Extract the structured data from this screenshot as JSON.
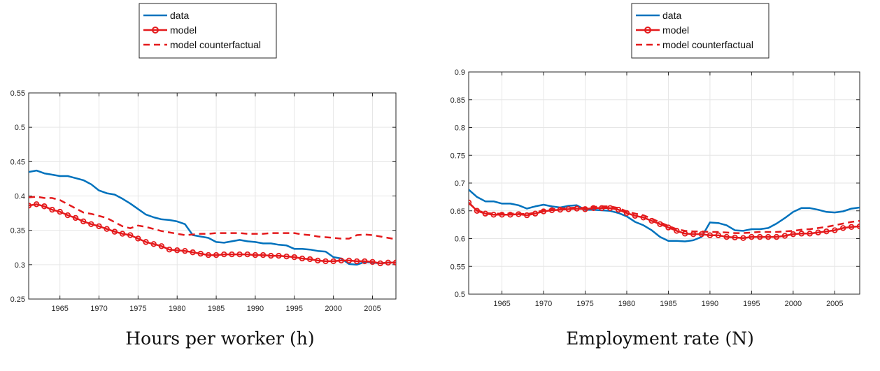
{
  "chart_data": [
    {
      "type": "line",
      "title": "",
      "caption": "Hours per worker (h)",
      "xlabel": "",
      "ylabel": "",
      "xlim": [
        1961,
        2008
      ],
      "ylim": [
        0.25,
        0.55
      ],
      "xticks": [
        "1965",
        "1970",
        "1975",
        "1980",
        "1985",
        "1990",
        "1995",
        "2000",
        "2005"
      ],
      "yticks": [
        "0.25",
        "0.3",
        "0.35",
        "0.4",
        "0.45",
        "0.5",
        "0.55"
      ],
      "grid": true,
      "legend": "top-center",
      "series": [
        {
          "name": "data",
          "color": "#0072BD",
          "style": "solid",
          "x": [
            1961,
            1962,
            1963,
            1964,
            1965,
            1966,
            1967,
            1968,
            1969,
            1970,
            1971,
            1972,
            1973,
            1974,
            1975,
            1976,
            1977,
            1978,
            1979,
            1980,
            1981,
            1982,
            1983,
            1984,
            1985,
            1986,
            1987,
            1988,
            1989,
            1990,
            1991,
            1992,
            1993,
            1994,
            1995,
            1996,
            1997,
            1998,
            1999,
            2000,
            2001,
            2002,
            2003,
            2004,
            2005,
            2006,
            2007,
            2008
          ],
          "y": [
            0.435,
            0.437,
            0.433,
            0.431,
            0.429,
            0.429,
            0.426,
            0.423,
            0.417,
            0.408,
            0.404,
            0.402,
            0.396,
            0.389,
            0.381,
            0.373,
            0.369,
            0.366,
            0.365,
            0.363,
            0.359,
            0.343,
            0.341,
            0.339,
            0.333,
            0.332,
            0.334,
            0.336,
            0.334,
            0.333,
            0.331,
            0.331,
            0.329,
            0.328,
            0.323,
            0.323,
            0.322,
            0.32,
            0.319,
            0.311,
            0.309,
            0.301,
            0.3,
            0.304,
            0.303,
            0.302,
            0.303,
            0.303
          ]
        },
        {
          "name": "model",
          "color": "#E41A1C",
          "style": "solid-circle",
          "x": [
            1961,
            1962,
            1963,
            1964,
            1965,
            1966,
            1967,
            1968,
            1969,
            1970,
            1971,
            1972,
            1973,
            1974,
            1975,
            1976,
            1977,
            1978,
            1979,
            1980,
            1981,
            1982,
            1983,
            1984,
            1985,
            1986,
            1987,
            1988,
            1989,
            1990,
            1991,
            1992,
            1993,
            1994,
            1995,
            1996,
            1997,
            1998,
            1999,
            2000,
            2001,
            2002,
            2003,
            2004,
            2005,
            2006,
            2007,
            2008
          ],
          "y": [
            0.386,
            0.388,
            0.385,
            0.38,
            0.377,
            0.372,
            0.368,
            0.363,
            0.359,
            0.356,
            0.352,
            0.348,
            0.345,
            0.343,
            0.338,
            0.333,
            0.33,
            0.327,
            0.322,
            0.321,
            0.32,
            0.318,
            0.316,
            0.314,
            0.314,
            0.315,
            0.315,
            0.315,
            0.315,
            0.314,
            0.314,
            0.313,
            0.313,
            0.312,
            0.311,
            0.309,
            0.308,
            0.306,
            0.305,
            0.305,
            0.306,
            0.306,
            0.305,
            0.305,
            0.304,
            0.302,
            0.303,
            0.303
          ]
        },
        {
          "name": "model counterfactual",
          "color": "#E41A1C",
          "style": "dashed",
          "x": [
            1961,
            1962,
            1963,
            1964,
            1965,
            1966,
            1967,
            1968,
            1969,
            1970,
            1971,
            1972,
            1973,
            1974,
            1975,
            1976,
            1977,
            1978,
            1979,
            1980,
            1981,
            1982,
            1983,
            1984,
            1985,
            1986,
            1987,
            1988,
            1989,
            1990,
            1991,
            1992,
            1993,
            1994,
            1995,
            1996,
            1997,
            1998,
            1999,
            2000,
            2001,
            2002,
            2003,
            2004,
            2005,
            2006,
            2007,
            2008
          ],
          "y": [
            0.398,
            0.399,
            0.397,
            0.397,
            0.394,
            0.388,
            0.382,
            0.376,
            0.374,
            0.371,
            0.368,
            0.362,
            0.356,
            0.353,
            0.357,
            0.355,
            0.352,
            0.349,
            0.347,
            0.345,
            0.343,
            0.344,
            0.345,
            0.345,
            0.346,
            0.346,
            0.346,
            0.346,
            0.345,
            0.345,
            0.345,
            0.346,
            0.346,
            0.346,
            0.346,
            0.344,
            0.343,
            0.341,
            0.34,
            0.339,
            0.338,
            0.338,
            0.343,
            0.344,
            0.343,
            0.341,
            0.339,
            0.337
          ]
        }
      ]
    },
    {
      "type": "line",
      "title": "",
      "caption": "Employment rate (N)",
      "xlabel": "",
      "ylabel": "",
      "xlim": [
        1961,
        2008
      ],
      "ylim": [
        0.5,
        0.9
      ],
      "xticks": [
        "1965",
        "1970",
        "1975",
        "1980",
        "1985",
        "1990",
        "1995",
        "2000",
        "2005"
      ],
      "yticks": [
        "0.5",
        "0.55",
        "0.6",
        "0.65",
        "0.7",
        "0.75",
        "0.8",
        "0.85",
        "0.9"
      ],
      "grid": true,
      "legend": "top-center",
      "series": [
        {
          "name": "data",
          "color": "#0072BD",
          "style": "solid",
          "x": [
            1961,
            1962,
            1963,
            1964,
            1965,
            1966,
            1967,
            1968,
            1969,
            1970,
            1971,
            1972,
            1973,
            1974,
            1975,
            1976,
            1977,
            1978,
            1979,
            1980,
            1981,
            1982,
            1983,
            1984,
            1985,
            1986,
            1987,
            1988,
            1989,
            1990,
            1991,
            1992,
            1993,
            1994,
            1995,
            1996,
            1997,
            1998,
            1999,
            2000,
            2001,
            2002,
            2003,
            2004,
            2005,
            2006,
            2007,
            2008
          ],
          "y": [
            0.688,
            0.675,
            0.667,
            0.667,
            0.663,
            0.663,
            0.66,
            0.654,
            0.658,
            0.661,
            0.658,
            0.656,
            0.659,
            0.66,
            0.652,
            0.652,
            0.651,
            0.65,
            0.646,
            0.64,
            0.63,
            0.624,
            0.615,
            0.603,
            0.596,
            0.596,
            0.595,
            0.597,
            0.603,
            0.629,
            0.628,
            0.624,
            0.615,
            0.614,
            0.617,
            0.617,
            0.619,
            0.627,
            0.637,
            0.648,
            0.655,
            0.655,
            0.652,
            0.648,
            0.647,
            0.649,
            0.654,
            0.656
          ]
        },
        {
          "name": "model",
          "color": "#E41A1C",
          "style": "solid-circle",
          "x": [
            1961,
            1962,
            1963,
            1964,
            1965,
            1966,
            1967,
            1968,
            1969,
            1970,
            1971,
            1972,
            1973,
            1974,
            1975,
            1976,
            1977,
            1978,
            1979,
            1980,
            1981,
            1982,
            1983,
            1984,
            1985,
            1986,
            1987,
            1988,
            1989,
            1990,
            1991,
            1992,
            1993,
            1994,
            1995,
            1996,
            1997,
            1998,
            1999,
            2000,
            2001,
            2002,
            2003,
            2004,
            2005,
            2006,
            2007,
            2008
          ],
          "y": [
            0.665,
            0.65,
            0.645,
            0.643,
            0.643,
            0.643,
            0.644,
            0.642,
            0.645,
            0.649,
            0.651,
            0.652,
            0.653,
            0.654,
            0.653,
            0.655,
            0.655,
            0.655,
            0.652,
            0.646,
            0.641,
            0.638,
            0.632,
            0.626,
            0.62,
            0.614,
            0.609,
            0.608,
            0.608,
            0.606,
            0.606,
            0.603,
            0.602,
            0.601,
            0.603,
            0.603,
            0.603,
            0.603,
            0.605,
            0.608,
            0.609,
            0.609,
            0.611,
            0.613,
            0.615,
            0.619,
            0.621,
            0.622
          ]
        },
        {
          "name": "model counterfactual",
          "color": "#E41A1C",
          "style": "dashed",
          "x": [
            1961,
            1962,
            1963,
            1964,
            1965,
            1966,
            1967,
            1968,
            1969,
            1970,
            1971,
            1972,
            1973,
            1974,
            1975,
            1976,
            1977,
            1978,
            1979,
            1980,
            1981,
            1982,
            1983,
            1984,
            1985,
            1986,
            1987,
            1988,
            1989,
            1990,
            1991,
            1992,
            1993,
            1994,
            1995,
            1996,
            1997,
            1998,
            1999,
            2000,
            2001,
            2002,
            2003,
            2004,
            2005,
            2006,
            2007,
            2008
          ],
          "y": [
            0.664,
            0.651,
            0.646,
            0.645,
            0.645,
            0.645,
            0.645,
            0.644,
            0.647,
            0.651,
            0.653,
            0.654,
            0.655,
            0.656,
            0.655,
            0.657,
            0.658,
            0.658,
            0.655,
            0.649,
            0.645,
            0.642,
            0.636,
            0.629,
            0.623,
            0.617,
            0.614,
            0.613,
            0.613,
            0.612,
            0.612,
            0.611,
            0.61,
            0.61,
            0.611,
            0.612,
            0.612,
            0.612,
            0.613,
            0.614,
            0.616,
            0.617,
            0.619,
            0.621,
            0.624,
            0.627,
            0.63,
            0.632
          ]
        }
      ]
    }
  ]
}
